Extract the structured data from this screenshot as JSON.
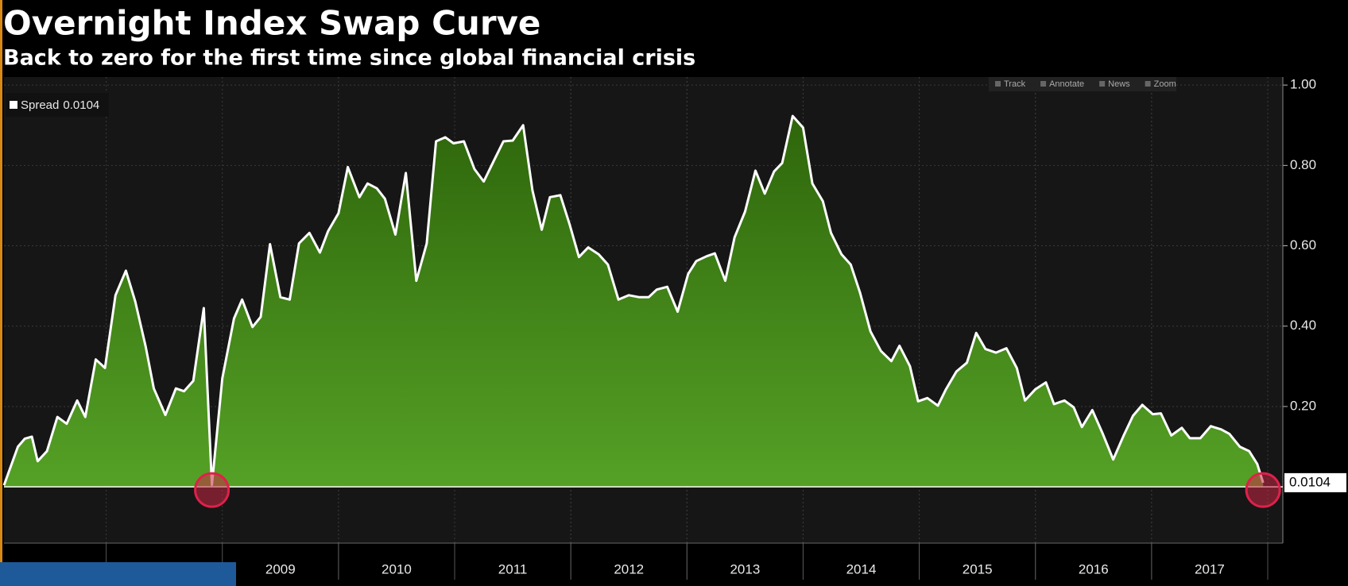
{
  "chart_data": {
    "type": "area",
    "title": "Overnight Index Swap Curve",
    "subtitle": "Back to zero for the first time since global financial crisis",
    "toolbar": [
      "Track",
      "Annotate",
      "News",
      "Zoom"
    ],
    "x": [
      2007.12,
      2007.24,
      2007.3,
      2007.36,
      2007.41,
      2007.49,
      2007.58,
      2007.66,
      2007.75,
      2007.82,
      2007.91,
      2007.99,
      2008.08,
      2008.17,
      2008.25,
      2008.34,
      2008.41,
      2008.51,
      2008.6,
      2008.67,
      2008.75,
      2008.84,
      2008.91,
      2009.0,
      2009.1,
      2009.17,
      2009.26,
      2009.33,
      2009.41,
      2009.5,
      2009.58,
      2009.66,
      2009.75,
      2009.84,
      2009.91,
      2010.0,
      2010.08,
      2010.18,
      2010.25,
      2010.33,
      2010.4,
      2010.49,
      2010.58,
      2010.67,
      2010.76,
      2010.84,
      2010.92,
      2010.99,
      2011.08,
      2011.17,
      2011.25,
      2011.34,
      2011.42,
      2011.5,
      2011.59,
      2011.67,
      2011.75,
      2011.82,
      2011.91,
      2011.99,
      2012.07,
      2012.15,
      2012.24,
      2012.32,
      2012.41,
      2012.5,
      2012.59,
      2012.67,
      2012.74,
      2012.83,
      2012.92,
      2013.01,
      2013.08,
      2013.17,
      2013.24,
      2013.33,
      2013.41,
      2013.5,
      2013.59,
      2013.67,
      2013.75,
      2013.82,
      2013.91,
      2014.0,
      2014.08,
      2014.17,
      2014.24,
      2014.33,
      2014.41,
      2014.49,
      2014.58,
      2014.67,
      2014.76,
      2014.83,
      2014.92,
      2014.99,
      2015.07,
      2015.16,
      2015.23,
      2015.32,
      2015.41,
      2015.49,
      2015.57,
      2015.66,
      2015.75,
      2015.84,
      2015.91,
      2016.0,
      2016.09,
      2016.16,
      2016.25,
      2016.33,
      2016.4,
      2016.49,
      2016.58,
      2016.67,
      2016.76,
      2016.84,
      2016.92,
      2017.01,
      2017.08,
      2017.17,
      2017.26,
      2017.33,
      2017.42,
      2017.51,
      2017.6,
      2017.67,
      2017.76,
      2017.84,
      2017.91,
      2017.96
    ],
    "series": [
      {
        "name": "Spread",
        "color": "#ffffff",
        "fill_top": "#2e660b",
        "fill_bottom": "#55a126",
        "values": [
          0.004,
          0.1,
          0.12,
          0.125,
          0.064,
          0.089,
          0.174,
          0.157,
          0.215,
          0.174,
          0.317,
          0.296,
          0.477,
          0.538,
          0.462,
          0.349,
          0.245,
          0.179,
          0.245,
          0.238,
          0.264,
          0.445,
          0.005,
          0.27,
          0.419,
          0.466,
          0.398,
          0.423,
          0.604,
          0.472,
          0.466,
          0.606,
          0.632,
          0.583,
          0.636,
          0.681,
          0.796,
          0.721,
          0.755,
          0.743,
          0.717,
          0.628,
          0.781,
          0.513,
          0.606,
          0.86,
          0.87,
          0.855,
          0.86,
          0.791,
          0.76,
          0.813,
          0.86,
          0.862,
          0.9,
          0.738,
          0.64,
          0.721,
          0.726,
          0.653,
          0.572,
          0.596,
          0.579,
          0.553,
          0.466,
          0.477,
          0.472,
          0.472,
          0.491,
          0.498,
          0.436,
          0.53,
          0.562,
          0.574,
          0.581,
          0.513,
          0.621,
          0.685,
          0.787,
          0.73,
          0.785,
          0.806,
          0.923,
          0.894,
          0.755,
          0.711,
          0.632,
          0.579,
          0.553,
          0.483,
          0.387,
          0.338,
          0.313,
          0.351,
          0.3,
          0.213,
          0.221,
          0.202,
          0.243,
          0.287,
          0.309,
          0.383,
          0.343,
          0.334,
          0.345,
          0.296,
          0.215,
          0.243,
          0.26,
          0.206,
          0.215,
          0.198,
          0.149,
          0.191,
          0.132,
          0.068,
          0.128,
          0.177,
          0.204,
          0.181,
          0.183,
          0.128,
          0.147,
          0.121,
          0.121,
          0.151,
          0.143,
          0.132,
          0.1,
          0.089,
          0.057,
          0.0104
        ]
      }
    ],
    "xlim": [
      2007.12,
      2018.13
    ],
    "xticks": [
      2009,
      2010,
      2011,
      2012,
      2013,
      2014,
      2015,
      2016,
      2017
    ],
    "ylim": [
      -0.14,
      1.02
    ],
    "yticks": [
      {
        "value": 0.2,
        "label": "0.20"
      },
      {
        "value": 0.4,
        "label": "0.40"
      },
      {
        "value": 0.6,
        "label": "0.60"
      },
      {
        "value": 0.8,
        "label": "0.80"
      },
      {
        "value": 1.0,
        "label": "1.00"
      }
    ],
    "grid": true
  }
}
